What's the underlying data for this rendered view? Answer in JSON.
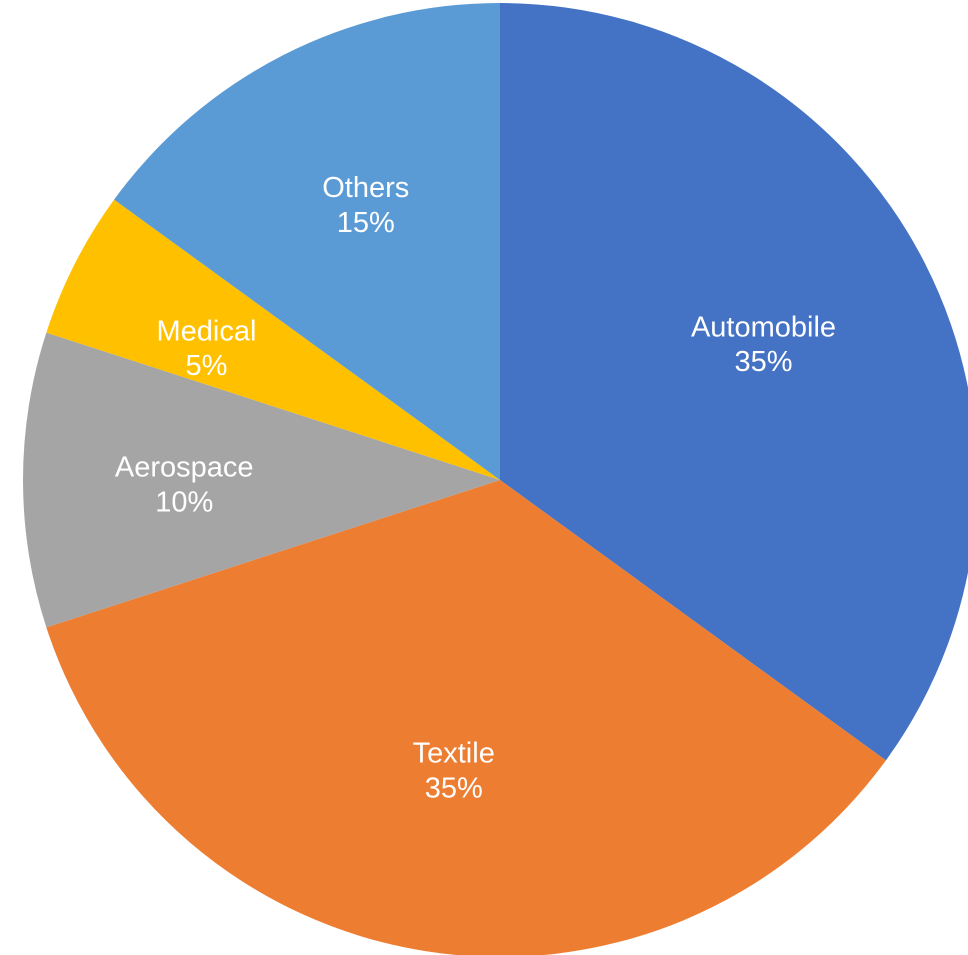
{
  "chart_data": {
    "type": "pie",
    "categories": [
      "Automobile",
      "Textile",
      "Aerospace",
      "Medical",
      "Others"
    ],
    "values": [
      35,
      35,
      10,
      5,
      15
    ],
    "percent_labels": [
      "35%",
      "35%",
      "10%",
      "5%",
      "15%"
    ],
    "colors": [
      "#4472C4",
      "#ED7D31",
      "#A5A5A5",
      "#FFC000",
      "#5B9BD5"
    ],
    "start_angle_deg": 0,
    "direction": "clockwise",
    "legend": "none"
  }
}
